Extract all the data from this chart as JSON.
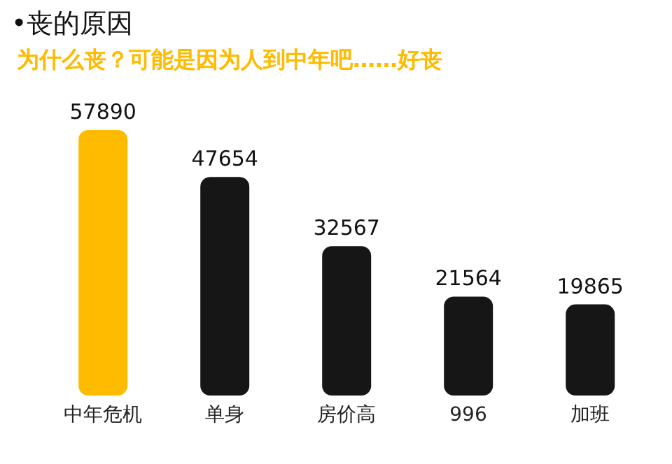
{
  "chart_data": {
    "type": "bar",
    "title": "•丧的原因",
    "subtitle": "为什么丧？可能是因为人到中年吧……好丧",
    "categories": [
      "中年危机",
      "单身",
      "房价高",
      "996",
      "加班"
    ],
    "values": [
      57890,
      47654,
      32567,
      21564,
      19865
    ],
    "colors": [
      "#ffbb00",
      "#161616",
      "#161616",
      "#161616",
      "#161616"
    ],
    "data_labels": true,
    "tick_labels": "x",
    "grid": false,
    "legend": false
  }
}
